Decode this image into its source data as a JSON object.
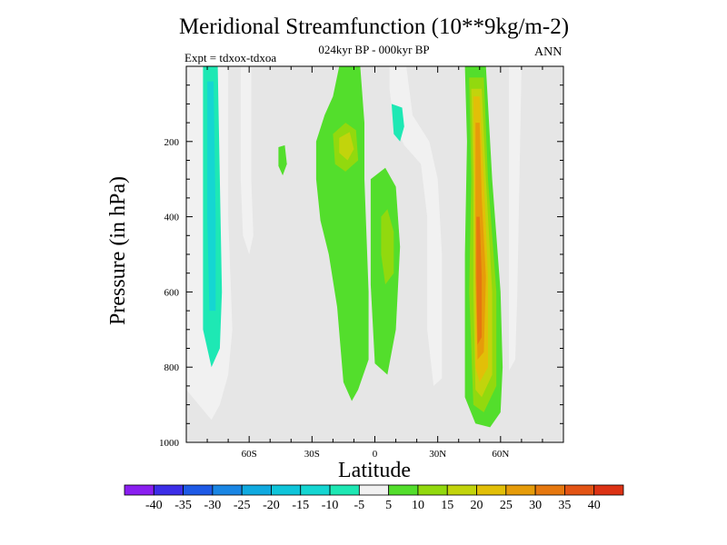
{
  "chart_data": {
    "type": "heatmap",
    "title": "Meridional Streamfunction (10**9kg/m-2)",
    "subtitle": "024kyr BP - 000kyr BP",
    "left_label": "Expt = tdxox-tdxoa",
    "right_label": "ANN",
    "xlabel": "Latitude",
    "ylabel": "Pressure (in hPa)",
    "xlim": [
      -90,
      90
    ],
    "ylim": [
      0,
      1000
    ],
    "y_reversed": true,
    "x_ticks": [
      {
        "value": -60,
        "label": "60S"
      },
      {
        "value": -30,
        "label": "30S"
      },
      {
        "value": 0,
        "label": "0"
      },
      {
        "value": 30,
        "label": "30N"
      },
      {
        "value": 60,
        "label": "60N"
      }
    ],
    "y_ticks": [
      {
        "value": 200,
        "label": "200"
      },
      {
        "value": 400,
        "label": "400"
      },
      {
        "value": 600,
        "label": "600"
      },
      {
        "value": 800,
        "label": "800"
      },
      {
        "value": 1000,
        "label": "1000"
      }
    ],
    "background_color": "#e6e6e6",
    "colorbar": {
      "boundaries": [
        "-40",
        "-35",
        "-30",
        "-25",
        "-20",
        "-15",
        "-10",
        "-5",
        "5",
        "10",
        "15",
        "20",
        "25",
        "30",
        "35",
        "40"
      ],
      "colors": [
        "#8a1ff0",
        "#3c2ee8",
        "#1e5ae6",
        "#1a86e4",
        "#10aae0",
        "#0fc5da",
        "#15d6d2",
        "#1ee8b4",
        "#f1f1f1",
        "#53de2c",
        "#92d90e",
        "#c2d40c",
        "#e2bf08",
        "#e69c0a",
        "#e6780f",
        "#e35414",
        "#dc3214"
      ]
    },
    "regions": [
      {
        "level": -5,
        "polygon": [
          [
            -90,
            0
          ],
          [
            -70,
            0
          ],
          [
            -70,
            400
          ],
          [
            -68,
            700
          ],
          [
            -70,
            820
          ],
          [
            -74,
            900
          ],
          [
            -78,
            940
          ],
          [
            -84,
            900
          ],
          [
            -90,
            860
          ]
        ]
      },
      {
        "level": -10,
        "polygon": [
          [
            -82,
            0
          ],
          [
            -75,
            0
          ],
          [
            -74,
            300
          ],
          [
            -73,
            600
          ],
          [
            -74,
            750
          ],
          [
            -78,
            800
          ],
          [
            -82,
            700
          ],
          [
            -82,
            300
          ]
        ]
      },
      {
        "level": -15,
        "polygon": [
          [
            -80,
            40
          ],
          [
            -77,
            40
          ],
          [
            -76,
            400
          ],
          [
            -76,
            650
          ],
          [
            -79,
            650
          ],
          [
            -80,
            400
          ]
        ]
      },
      {
        "level": -5,
        "polygon": [
          [
            -64,
            0
          ],
          [
            -59,
            0
          ],
          [
            -59,
            300
          ],
          [
            -58,
            450
          ],
          [
            -60,
            500
          ],
          [
            -63,
            450
          ],
          [
            -64,
            300
          ]
        ]
      },
      {
        "level": 5,
        "polygon": [
          [
            -46,
            215
          ],
          [
            -43,
            210
          ],
          [
            -42,
            260
          ],
          [
            -44,
            290
          ],
          [
            -46,
            265
          ]
        ]
      },
      {
        "level": 5,
        "polygon": [
          [
            -28,
            200
          ],
          [
            -24,
            130
          ],
          [
            -20,
            80
          ],
          [
            -17,
            0
          ],
          [
            -7,
            0
          ],
          [
            -5,
            150
          ],
          [
            -5,
            300
          ],
          [
            -3,
            600
          ],
          [
            -3,
            780
          ],
          [
            -8,
            860
          ],
          [
            -11,
            890
          ],
          [
            -15,
            840
          ],
          [
            -18,
            640
          ],
          [
            -22,
            500
          ],
          [
            -26,
            410
          ],
          [
            -28,
            300
          ]
        ]
      },
      {
        "level": 10,
        "polygon": [
          [
            -20,
            180
          ],
          [
            -14,
            150
          ],
          [
            -9,
            170
          ],
          [
            -8,
            250
          ],
          [
            -14,
            280
          ],
          [
            -19,
            260
          ]
        ]
      },
      {
        "level": 15,
        "polygon": [
          [
            -17,
            190
          ],
          [
            -12,
            175
          ],
          [
            -10,
            220
          ],
          [
            -13,
            250
          ],
          [
            -17,
            230
          ]
        ]
      },
      {
        "level": 5,
        "polygon": [
          [
            -2,
            300
          ],
          [
            5,
            270
          ],
          [
            10,
            320
          ],
          [
            12,
            480
          ],
          [
            10,
            700
          ],
          [
            6,
            820
          ],
          [
            0,
            790
          ],
          [
            -2,
            580
          ]
        ]
      },
      {
        "level": 10,
        "polygon": [
          [
            3,
            400
          ],
          [
            6,
            380
          ],
          [
            9,
            440
          ],
          [
            9,
            550
          ],
          [
            5,
            580
          ],
          [
            3,
            500
          ]
        ]
      },
      {
        "level": -5,
        "polygon": [
          [
            7,
            0
          ],
          [
            15,
            0
          ],
          [
            18,
            130
          ],
          [
            26,
            200
          ],
          [
            30,
            300
          ],
          [
            32,
            500
          ],
          [
            32,
            830
          ],
          [
            28,
            850
          ],
          [
            25,
            700
          ],
          [
            25,
            400
          ],
          [
            22,
            260
          ],
          [
            14,
            210
          ],
          [
            9,
            150
          ],
          [
            7,
            60
          ]
        ]
      },
      {
        "level": -10,
        "polygon": [
          [
            8,
            100
          ],
          [
            13,
            110
          ],
          [
            14,
            160
          ],
          [
            12,
            200
          ],
          [
            9,
            180
          ]
        ]
      },
      {
        "level": 5,
        "polygon": [
          [
            43,
            0
          ],
          [
            53,
            0
          ],
          [
            56,
            300
          ],
          [
            60,
            600
          ],
          [
            61,
            800
          ],
          [
            60,
            920
          ],
          [
            55,
            960
          ],
          [
            48,
            950
          ],
          [
            43,
            880
          ],
          [
            43,
            500
          ],
          [
            44,
            200
          ]
        ]
      },
      {
        "level": 10,
        "polygon": [
          [
            45,
            30
          ],
          [
            52,
            30
          ],
          [
            54,
            300
          ],
          [
            58,
            600
          ],
          [
            58,
            850
          ],
          [
            52,
            920
          ],
          [
            47,
            900
          ],
          [
            45,
            600
          ],
          [
            46,
            300
          ]
        ]
      },
      {
        "level": 15,
        "polygon": [
          [
            46,
            60
          ],
          [
            51,
            60
          ],
          [
            53,
            300
          ],
          [
            56,
            600
          ],
          [
            56,
            820
          ],
          [
            51,
            880
          ],
          [
            48,
            860
          ],
          [
            47,
            600
          ],
          [
            47,
            300
          ]
        ]
      },
      {
        "level": 20,
        "polygon": [
          [
            47,
            80
          ],
          [
            50,
            80
          ],
          [
            52,
            300
          ],
          [
            54,
            560
          ],
          [
            54,
            800
          ],
          [
            50,
            840
          ],
          [
            48,
            800
          ],
          [
            48,
            560
          ]
        ]
      },
      {
        "level": 25,
        "polygon": [
          [
            48,
            150
          ],
          [
            50,
            150
          ],
          [
            51,
            350
          ],
          [
            53,
            560
          ],
          [
            52,
            760
          ],
          [
            49,
            780
          ],
          [
            48,
            560
          ]
        ]
      },
      {
        "level": 30,
        "polygon": [
          [
            48.5,
            400
          ],
          [
            50,
            400
          ],
          [
            51,
            560
          ],
          [
            51,
            720
          ],
          [
            49,
            740
          ],
          [
            48.5,
            560
          ]
        ]
      },
      {
        "level": -5,
        "polygon": [
          [
            64,
            0
          ],
          [
            70,
            0
          ],
          [
            69,
            300
          ],
          [
            68,
            600
          ],
          [
            67,
            780
          ],
          [
            64,
            810
          ],
          [
            64,
            500
          ]
        ]
      }
    ]
  }
}
